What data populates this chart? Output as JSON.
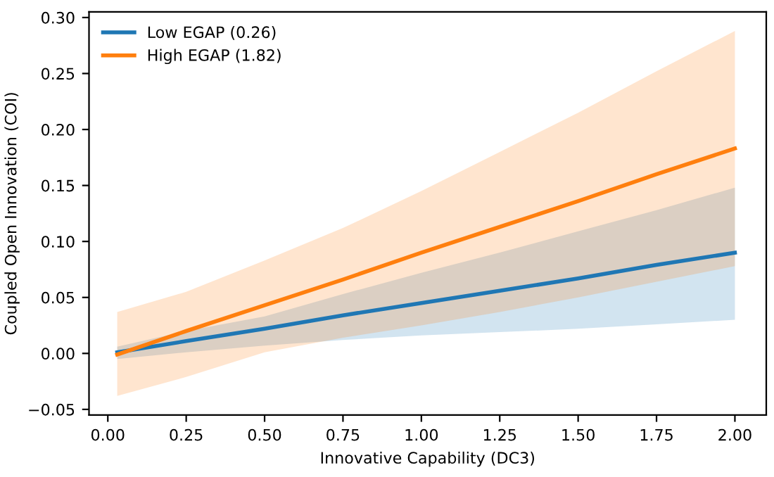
{
  "chart_data": {
    "type": "line",
    "xlabel": "Innovative Capability (DC3)",
    "ylabel": "Coupled Open Innovation (COI)",
    "series": [
      {
        "name": "Low EGAP (0.26)",
        "color": "#1f77b4",
        "x": [
          0.03,
          0.25,
          0.5,
          0.75,
          1.0,
          1.25,
          1.5,
          1.75,
          2.0
        ],
        "values": [
          0.001,
          0.011,
          0.022,
          0.034,
          0.045,
          0.056,
          0.067,
          0.079,
          0.09
        ],
        "lower": [
          -0.005,
          0.001,
          0.007,
          0.012,
          0.016,
          0.019,
          0.022,
          0.026,
          0.03
        ],
        "upper": [
          0.006,
          0.02,
          0.033,
          0.053,
          0.072,
          0.09,
          0.109,
          0.128,
          0.148
        ]
      },
      {
        "name": "High EGAP (1.82)",
        "color": "#ff7f0e",
        "x": [
          0.03,
          0.25,
          0.5,
          0.75,
          1.0,
          1.25,
          1.5,
          1.75,
          2.0
        ],
        "values": [
          -0.001,
          0.02,
          0.043,
          0.066,
          0.09,
          0.113,
          0.136,
          0.16,
          0.183
        ],
        "lower": [
          -0.038,
          -0.021,
          0.001,
          0.014,
          0.025,
          0.037,
          0.05,
          0.064,
          0.078
        ],
        "upper": [
          0.037,
          0.055,
          0.083,
          0.112,
          0.145,
          0.18,
          0.215,
          0.252,
          0.288
        ]
      }
    ],
    "xlim": [
      -0.06,
      2.1
    ],
    "xticks": [
      {
        "value": 0.0,
        "label": "0.00"
      },
      {
        "value": 0.25,
        "label": "0.25"
      },
      {
        "value": 0.5,
        "label": "0.50"
      },
      {
        "value": 0.75,
        "label": "0.75"
      },
      {
        "value": 1.0,
        "label": "1.00"
      },
      {
        "value": 1.25,
        "label": "1.25"
      },
      {
        "value": 1.5,
        "label": "1.50"
      },
      {
        "value": 1.75,
        "label": "1.75"
      },
      {
        "value": 2.0,
        "label": "2.00"
      }
    ],
    "ylim": [
      -0.055,
      0.305
    ],
    "yticks": [
      {
        "value": -0.05,
        "label": "−0.05"
      },
      {
        "value": 0.0,
        "label": "0.00"
      },
      {
        "value": 0.05,
        "label": "0.05"
      },
      {
        "value": 0.1,
        "label": "0.10"
      },
      {
        "value": 0.15,
        "label": "0.15"
      },
      {
        "value": 0.2,
        "label": "0.20"
      },
      {
        "value": 0.25,
        "label": "0.25"
      },
      {
        "value": 0.3,
        "label": "0.30"
      }
    ],
    "legend": "top left",
    "grid": false,
    "marker": "none",
    "line_style": "solid"
  }
}
